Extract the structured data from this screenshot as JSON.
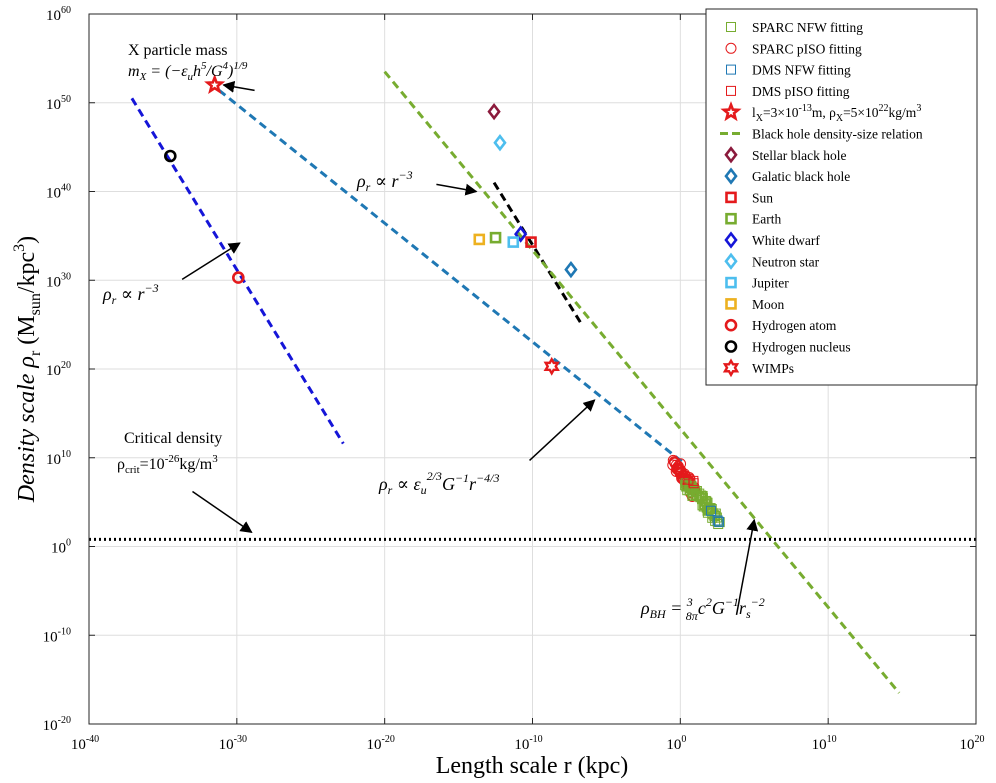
{
  "chart_data": {
    "type": "scatter",
    "xscale": "log",
    "yscale": "log",
    "xlim": [
      -40,
      20
    ],
    "ylim": [
      -20,
      60
    ],
    "xlabel": "Length scale r (kpc)",
    "ylabel": "Density scale ρ",
    "ylabel_sub": "r",
    "ylabel_unit": " (M",
    "ylabel_unit_sub": "sun",
    "ylabel_unit_tail": "/kpc",
    "ylabel_unit_sup": "3",
    "ylabel_unit_close": ")",
    "x_ticks": [
      {
        "exp": -40,
        "label": "10",
        "sup": "-40"
      },
      {
        "exp": -30,
        "label": "10",
        "sup": "-30"
      },
      {
        "exp": -20,
        "label": "10",
        "sup": "-20"
      },
      {
        "exp": -10,
        "label": "10",
        "sup": "-10"
      },
      {
        "exp": 0,
        "label": "10",
        "sup": "0"
      },
      {
        "exp": 10,
        "label": "10",
        "sup": "10"
      },
      {
        "exp": 20,
        "label": "10",
        "sup": "20"
      }
    ],
    "y_ticks": [
      {
        "exp": -20,
        "label": "10",
        "sup": "-20"
      },
      {
        "exp": -10,
        "label": "10",
        "sup": "-10"
      },
      {
        "exp": 0,
        "label": "10",
        "sup": "0"
      },
      {
        "exp": 10,
        "label": "10",
        "sup": "10"
      },
      {
        "exp": 20,
        "label": "10",
        "sup": "20"
      },
      {
        "exp": 30,
        "label": "10",
        "sup": "30"
      },
      {
        "exp": 40,
        "label": "10",
        "sup": "40"
      },
      {
        "exp": 50,
        "label": "10",
        "sup": "50"
      },
      {
        "exp": 60,
        "label": "10",
        "sup": "60"
      }
    ],
    "grid": true,
    "legend_position": "top-right",
    "lines": [
      {
        "name": "blue_r3",
        "color": "#1515d8",
        "dash": "8,5",
        "width": 3,
        "x": [
          -37.1,
          -22.8
        ],
        "y": [
          50.5,
          11.6
        ]
      },
      {
        "name": "teal_r43",
        "color": "#1f78b4",
        "dash": "8,5",
        "width": 3,
        "x": [
          -31.2,
          0.3
        ],
        "y": [
          51.4,
          9.3
        ]
      },
      {
        "name": "black_r3",
        "color": "#000000",
        "dash": "8,5",
        "width": 3,
        "x": [
          -12.6,
          -6.7
        ],
        "y": [
          41.0,
          25.1
        ]
      },
      {
        "name": "Black hole density-size relation",
        "color": "#77ac30",
        "dash": "8,5",
        "width": 3,
        "x": [
          -20.0,
          14.8
        ],
        "y": [
          53.5,
          -16.5
        ]
      },
      {
        "name": "Critical density",
        "color": "#000000",
        "dash": "2,3",
        "width": 3,
        "x": [
          -40,
          20
        ],
        "y": [
          0.8,
          0.8
        ]
      }
    ],
    "points": [
      {
        "series": "Stellar black hole",
        "marker": "diamond",
        "color": "#8b1a3c",
        "x": -12.6,
        "y": 49.0
      },
      {
        "series": "Neutron star",
        "marker": "diamond",
        "color": "#4dbeee",
        "x": -12.2,
        "y": 45.5
      },
      {
        "series": "White dwarf",
        "marker": "diamond",
        "color": "#1515d8",
        "x": -10.8,
        "y": 35.2
      },
      {
        "series": "Galatic black hole",
        "marker": "diamond",
        "color": "#1f78b4",
        "x": -7.4,
        "y": 31.2
      },
      {
        "series": "Moon",
        "marker": "square",
        "color": "#edb120",
        "x": -13.6,
        "y": 34.6
      },
      {
        "series": "Earth",
        "marker": "square",
        "color": "#77ac30",
        "x": -12.5,
        "y": 34.8
      },
      {
        "series": "Jupiter",
        "marker": "square",
        "color": "#4dbeee",
        "x": -11.3,
        "y": 34.3
      },
      {
        "series": "Sun",
        "marker": "square",
        "color": "#e41a1c",
        "x": -10.1,
        "y": 34.3
      },
      {
        "series": "Hydrogen atom",
        "marker": "circle",
        "color": "#e41a1c",
        "x": -29.9,
        "y": 30.3
      },
      {
        "series": "Hydrogen nucleus",
        "marker": "circle",
        "color": "#000000",
        "x": -34.5,
        "y": 44.0
      },
      {
        "series": "WIMPs",
        "marker": "hexagram",
        "color": "#e41a1c",
        "x": -8.7,
        "y": 20.3
      },
      {
        "series": "X particle",
        "marker": "pentagram",
        "color": "#e41a1c",
        "x": -31.5,
        "y": 52.0
      }
    ],
    "clusters": [
      {
        "series": "SPARC pISO fitting",
        "marker": "circle",
        "color": "#e41a1c",
        "x_range": [
          -0.4,
          1.0
        ],
        "y_range": [
          6.0,
          9.5
        ],
        "count": 60
      },
      {
        "series": "SPARC NFW fitting",
        "marker": "square",
        "color": "#77ac30",
        "x_range": [
          0.4,
          2.6
        ],
        "y_range": [
          3.0,
          7.2
        ],
        "count": 60
      },
      {
        "series": "DMS NFW fitting",
        "marker": "square",
        "color": "#1f78b4",
        "x_range": [
          2.2,
          2.6
        ],
        "y_range": [
          3.0,
          3.8
        ],
        "count": 3
      },
      {
        "series": "DMS pISO fitting",
        "marker": "square",
        "color": "#e41a1c",
        "x_range": [
          0.6,
          1.0
        ],
        "y_range": [
          7.0,
          7.8
        ],
        "count": 3
      }
    ],
    "annotations": [
      {
        "text_lines": [
          "X particle mass",
          "m_X = (−ε_u h^5/G^4)^{1/9}"
        ],
        "arrow_from": [
          -28.8,
          51.4
        ],
        "arrow_to": [
          -30.9,
          52.0
        ]
      },
      {
        "text": "ρr ∝ r^−3",
        "arrow_from": [
          -33.7,
          30.1
        ],
        "arrow_to": [
          -29.8,
          34.2
        ]
      },
      {
        "text": "ρr ∝ r^−3",
        "arrow_from": [
          -16.5,
          40.8
        ],
        "arrow_to": [
          -13.8,
          40.0
        ]
      },
      {
        "text": "ρr ∝ εu^2/3 G^−1 r^−4/3",
        "arrow_from": [
          -10.2,
          9.7
        ],
        "arrow_to": [
          -5.8,
          16.5
        ]
      },
      {
        "text_lines": [
          "Critical density",
          "ρcrit=10^−26kg/m^3"
        ],
        "arrow_from": [
          -33.0,
          6.2
        ],
        "arrow_to": [
          -29.0,
          1.6
        ]
      },
      {
        "text": "ρBH = 3/8π c^2 G^−1 rs^−2",
        "arrow_from": [
          3.8,
          -7.7
        ],
        "arrow_to": [
          5.0,
          3.0
        ]
      }
    ],
    "legend": [
      {
        "label": "SPARC NFW fitting",
        "marker": "square-thin",
        "color": "#77ac30"
      },
      {
        "label": "SPARC pISO fitting",
        "marker": "circle-thin",
        "color": "#e41a1c"
      },
      {
        "label": "DMS NFW fitting",
        "marker": "square-thin",
        "color": "#1f78b4"
      },
      {
        "label": "DMS pISO fitting",
        "marker": "square-thin",
        "color": "#e41a1c"
      },
      {
        "label": "l_X=3×10^-13m, ρ_X=5×10^22kg/m^3",
        "marker": "pentagram",
        "color": "#e41a1c"
      },
      {
        "label": "Black hole density-size relation",
        "marker": "dash",
        "color": "#77ac30"
      },
      {
        "label": "Stellar black hole",
        "marker": "diamond",
        "color": "#8b1a3c"
      },
      {
        "label": "Galatic black hole",
        "marker": "diamond",
        "color": "#1f78b4"
      },
      {
        "label": "Sun",
        "marker": "square",
        "color": "#e41a1c"
      },
      {
        "label": "Earth",
        "marker": "square",
        "color": "#77ac30"
      },
      {
        "label": "White dwarf",
        "marker": "diamond",
        "color": "#1515d8"
      },
      {
        "label": "Neutron star",
        "marker": "diamond",
        "color": "#4dbeee"
      },
      {
        "label": "Jupiter",
        "marker": "square",
        "color": "#4dbeee"
      },
      {
        "label": "Moon",
        "marker": "square",
        "color": "#edb120"
      },
      {
        "label": "Hydrogen atom",
        "marker": "circle",
        "color": "#e41a1c"
      },
      {
        "label": "Hydrogen nucleus",
        "marker": "circle",
        "color": "#000000"
      },
      {
        "label": "WIMPs",
        "marker": "hexagram",
        "color": "#e41a1c"
      }
    ]
  }
}
